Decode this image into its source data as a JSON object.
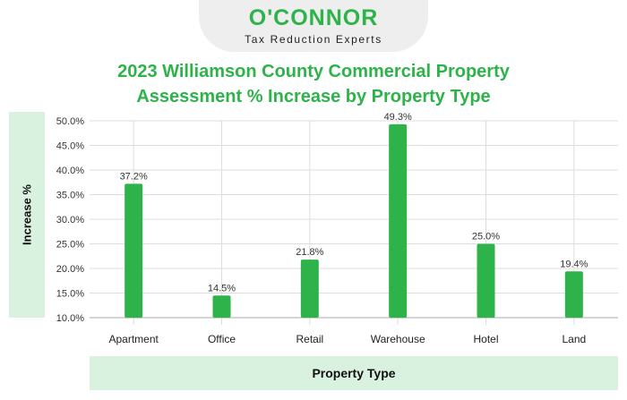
{
  "brand": {
    "name": "O'CONNOR",
    "tagline": "Tax Reduction Experts",
    "color": "#2eb34a"
  },
  "chart_data": {
    "type": "bar",
    "title": "2023 Williamson County Commercial Property Assessment % Increase by Property Type",
    "title_lines": [
      "2023 Williamson County Commercial Property",
      "Assessment % Increase by Property Type"
    ],
    "xlabel": "Property Type",
    "ylabel": "Increase %",
    "categories": [
      "Apartment",
      "Office",
      "Retail",
      "Warehouse",
      "Hotel",
      "Land"
    ],
    "values": [
      37.2,
      14.5,
      21.8,
      49.3,
      25.0,
      19.4
    ],
    "value_labels": [
      "37.2%",
      "14.5%",
      "21.8%",
      "49.3%",
      "25.0%",
      "19.4%"
    ],
    "ylim": [
      10,
      50
    ],
    "yticks": [
      10,
      15,
      20,
      25,
      30,
      35,
      40,
      45,
      50
    ],
    "ytick_labels": [
      "10.0%",
      "15.0%",
      "20.0%",
      "25.0%",
      "30.0%",
      "35.0%",
      "40.0%",
      "45.0%",
      "50.0%"
    ],
    "grid": true,
    "bar_color": "#2eb34a",
    "grid_color": "#dddddd"
  }
}
